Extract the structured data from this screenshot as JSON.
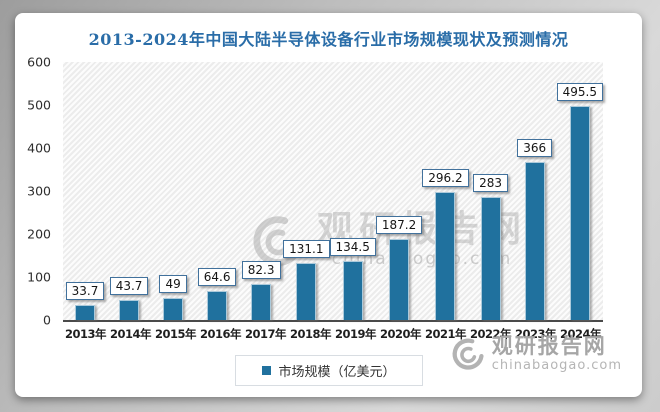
{
  "chart": {
    "title": "2013-2024年中国大陆半导体设备行业市场规模现状及预测情况",
    "legend_label": "市场规模（亿美元）",
    "colors": {
      "bar": "#20719E",
      "title_text": "#2A6DA8",
      "value_label_border": "#41719C",
      "axis_line": "#4A4A4A"
    },
    "watermark_center": {
      "brand": "观研报告网",
      "url": "chinabaogao.com"
    },
    "watermark_bottom_right": {
      "brand": "观研报告网",
      "url": "chinabaogao.com"
    }
  },
  "chart_data": {
    "type": "bar",
    "title": "2013-2024年中国大陆半导体设备行业市场规模现状及预测情况",
    "categories": [
      "2013年",
      "2014年",
      "2015年",
      "2016年",
      "2017年",
      "2018年",
      "2019年",
      "2020年",
      "2021年",
      "2022年",
      "2023年",
      "2024年"
    ],
    "series": [
      {
        "name": "市场规模（亿美元）",
        "values": [
          33.7,
          43.7,
          49,
          64.6,
          82.3,
          131.1,
          134.5,
          187.2,
          296.2,
          283,
          366,
          495.5
        ]
      }
    ],
    "value_labels": [
      "33.7",
      "43.7",
      "49",
      "64.6",
      "82.3",
      "131.1",
      "134.5",
      "187.2",
      "296.2",
      "283",
      "366",
      "495.5"
    ],
    "xlabel": "",
    "ylabel": "",
    "ylim": [
      0,
      600
    ],
    "yticks": [
      0,
      100,
      200,
      300,
      400,
      500,
      600
    ],
    "grid": false,
    "legend_position": "bottom"
  }
}
